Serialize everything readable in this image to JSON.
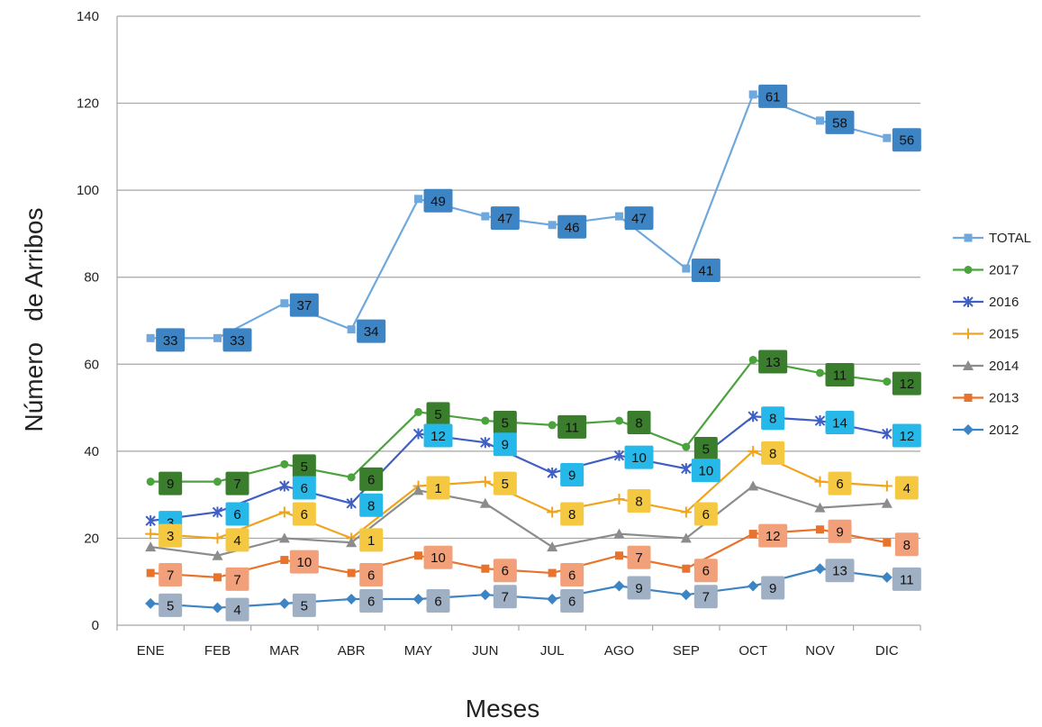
{
  "chart_data": {
    "type": "line",
    "title": "",
    "xlabel": "Meses",
    "ylabel": "Número   de Arribos",
    "ylim": [
      0,
      140
    ],
    "yticks": [
      0,
      20,
      40,
      60,
      80,
      100,
      120,
      140
    ],
    "grid": true,
    "legend_position": "right",
    "categories": [
      "ENE",
      "FEB",
      "MAR",
      "ABR",
      "MAY",
      "JUN",
      "JUL",
      "AGO",
      "SEP",
      "OCT",
      "NOV",
      "DIC"
    ],
    "series": [
      {
        "name": "TOTAL",
        "color": "#6fa8dc",
        "marker": "square",
        "label_bg": "#3c84c4",
        "values": [
          66,
          66,
          74,
          68,
          98,
          94,
          92,
          94,
          82,
          122,
          116,
          112
        ],
        "labels": [
          33,
          33,
          37,
          34,
          49,
          47,
          46,
          47,
          41,
          61,
          58,
          56
        ]
      },
      {
        "name": "2017",
        "color": "#4aa33c",
        "marker": "circle",
        "label_bg": "#3a7d2c",
        "values": [
          33,
          33,
          37,
          34,
          49,
          47,
          46,
          47,
          41,
          61,
          58,
          56
        ],
        "labels": [
          9,
          7,
          5,
          6,
          5,
          5,
          11,
          8,
          5,
          13,
          11,
          12
        ]
      },
      {
        "name": "2016",
        "color": "#3f5fc4",
        "marker": "star",
        "label_bg": "#26b8e8",
        "values": [
          24,
          26,
          32,
          28,
          44,
          42,
          35,
          39,
          36,
          48,
          47,
          44
        ],
        "labels": [
          3,
          6,
          6,
          8,
          12,
          9,
          9,
          10,
          10,
          8,
          14,
          12
        ]
      },
      {
        "name": "2015",
        "color": "#f0a41c",
        "marker": "cross",
        "label_bg": "#f5c842",
        "values": [
          21,
          20,
          26,
          20,
          32,
          33,
          26,
          29,
          26,
          40,
          33,
          32
        ],
        "labels": [
          3,
          4,
          6,
          1,
          1,
          5,
          8,
          8,
          6,
          8,
          6,
          4
        ]
      },
      {
        "name": "2014",
        "color": "#8c8c8c",
        "marker": "triangle",
        "label_bg": null,
        "values": [
          18,
          16,
          20,
          19,
          31,
          28,
          18,
          21,
          20,
          32,
          27,
          28
        ],
        "labels": []
      },
      {
        "name": "2013",
        "color": "#e8732c",
        "marker": "square",
        "label_bg": "#f2a07a",
        "values": [
          12,
          11,
          15,
          12,
          16,
          13,
          12,
          16,
          13,
          21,
          22,
          19
        ],
        "labels": [
          7,
          7,
          10,
          6,
          10,
          6,
          6,
          7,
          6,
          12,
          9,
          8
        ]
      },
      {
        "name": "2012",
        "color": "#3c84c4",
        "marker": "diamond",
        "label_bg": "#9fb0c4",
        "values": [
          5,
          4,
          5,
          6,
          6,
          7,
          6,
          9,
          7,
          9,
          13,
          11
        ],
        "labels": [
          5,
          4,
          5,
          6,
          6,
          7,
          6,
          9,
          7,
          9,
          13,
          11
        ]
      }
    ]
  }
}
